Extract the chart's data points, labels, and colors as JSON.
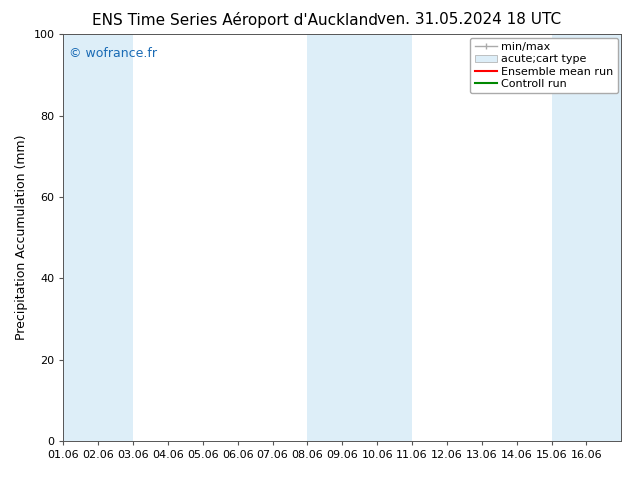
{
  "title_left": "ENS Time Series Aéroport d'Auckland",
  "title_right": "ven. 31.05.2024 18 UTC",
  "ylabel": "Precipitation Accumulation (mm)",
  "ylim": [
    0,
    100
  ],
  "xlim_start": 0,
  "xlim_end": 16,
  "xtick_labels": [
    "01.06",
    "02.06",
    "03.06",
    "04.06",
    "05.06",
    "06.06",
    "07.06",
    "08.06",
    "09.06",
    "10.06",
    "11.06",
    "12.06",
    "13.06",
    "14.06",
    "15.06",
    "16.06"
  ],
  "ytick_values": [
    0,
    20,
    40,
    60,
    80,
    100
  ],
  "watermark_text": "© wofrance.fr",
  "watermark_color": "#1a6bb5",
  "background_color": "#ffffff",
  "plot_bg_color": "#ffffff",
  "shaded_bands": [
    {
      "x_start": 0,
      "x_end": 2,
      "color": "#ddeef8"
    },
    {
      "x_start": 7,
      "x_end": 10,
      "color": "#ddeef8"
    },
    {
      "x_start": 14,
      "x_end": 16,
      "color": "#ddeef8"
    }
  ],
  "legend_entries": [
    {
      "label": "min/max",
      "type": "errorbar",
      "color": "#aaaaaa"
    },
    {
      "label": "acute;cart type",
      "type": "box",
      "color": "#ddeef8"
    },
    {
      "label": "Ensemble mean run",
      "type": "line",
      "color": "#ff0000"
    },
    {
      "label": "Controll run",
      "type": "line",
      "color": "#008800"
    }
  ],
  "title_fontsize": 11,
  "axis_label_fontsize": 9,
  "tick_fontsize": 8,
  "legend_fontsize": 8
}
